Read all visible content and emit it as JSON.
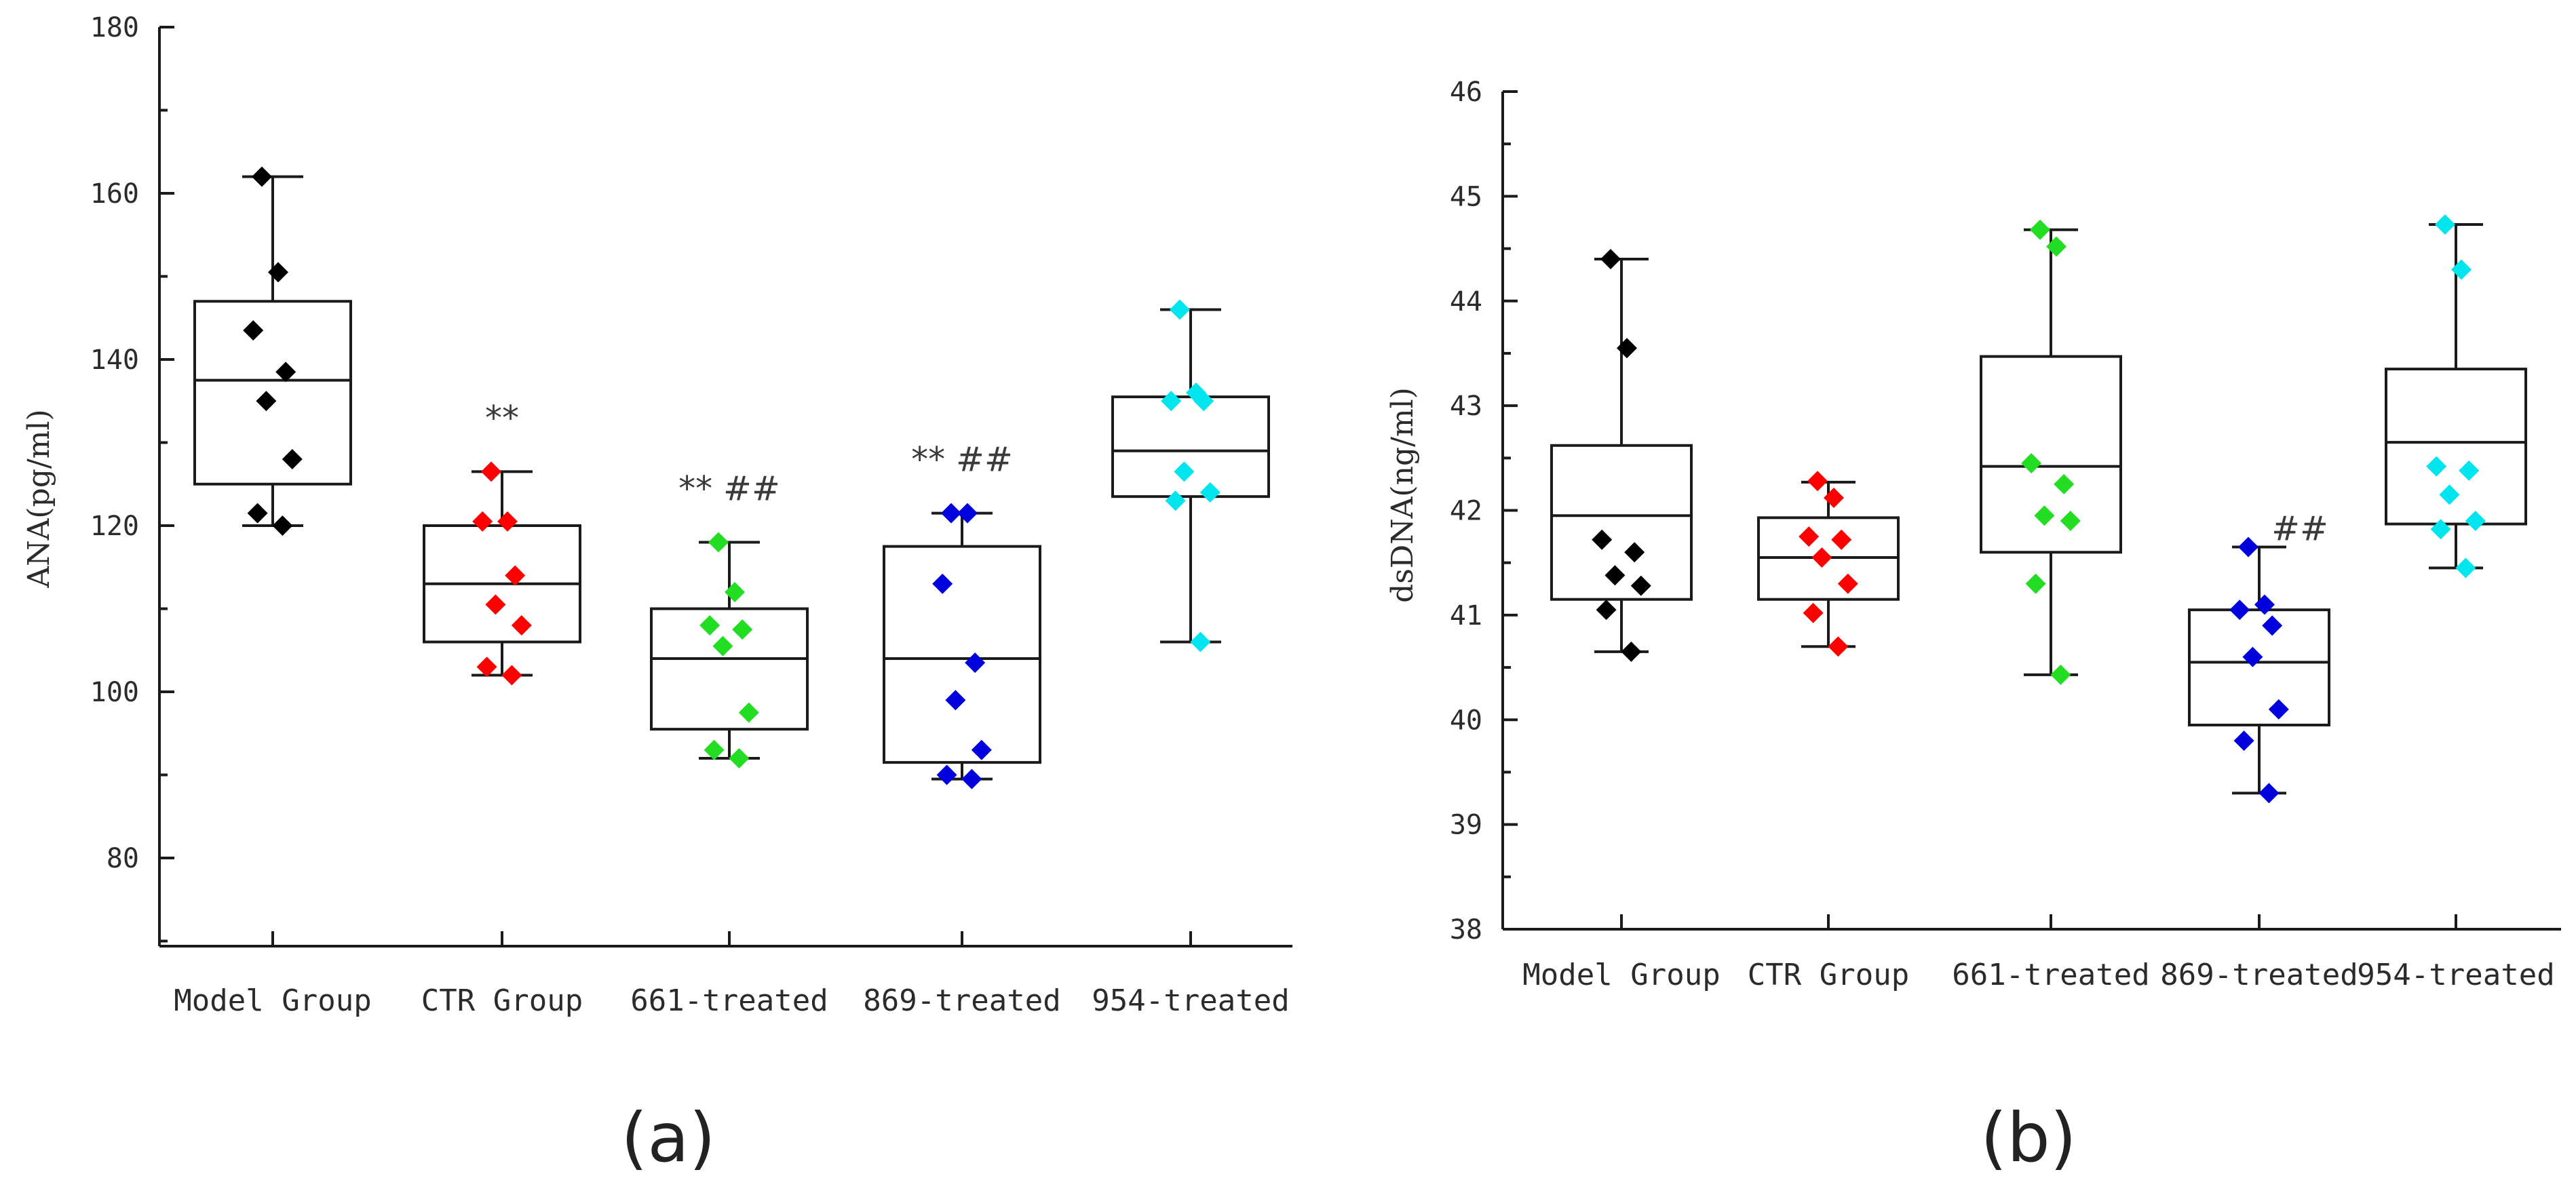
{
  "chart_data": [
    {
      "type": "box",
      "panel_label": "(a)",
      "ylabel": "ANA(pg/ml)",
      "ylim": [
        70,
        180
      ],
      "yticks": [
        80,
        100,
        120,
        140,
        160,
        180
      ],
      "categories": [
        "Model Group",
        "CTR Group",
        "661-treated",
        "869-treated",
        "954-treated"
      ],
      "colors": [
        "#000000",
        "#ff0000",
        "#22dd22",
        "#0000dd",
        "#00e5ee"
      ],
      "boxes": [
        {
          "whisker_low": 120,
          "q1": 125,
          "median": 137.5,
          "q3": 147,
          "whisker_high": 162
        },
        {
          "whisker_low": 102,
          "q1": 106,
          "median": 113,
          "q3": 120,
          "whisker_high": 126.5
        },
        {
          "whisker_low": 92,
          "q1": 95.5,
          "median": 104,
          "q3": 110,
          "whisker_high": 118
        },
        {
          "whisker_low": 89.5,
          "q1": 91.5,
          "median": 104,
          "q3": 117.5,
          "whisker_high": 121.5
        },
        {
          "whisker_low": 106,
          "q1": 123.5,
          "median": 129,
          "q3": 135.5,
          "whisker_high": 146
        }
      ],
      "points": [
        [
          162,
          150.5,
          143.5,
          138.5,
          135,
          128,
          121.5,
          120
        ],
        [
          126.5,
          120.5,
          120.5,
          114,
          110.5,
          108,
          103,
          102
        ],
        [
          118,
          112,
          108,
          107.5,
          105.5,
          97.5,
          93,
          92
        ],
        [
          121.5,
          121.5,
          113,
          103.5,
          99,
          93,
          90,
          89.5
        ],
        [
          146,
          136,
          135,
          135,
          126.5,
          124,
          123,
          106
        ]
      ],
      "annotations": [
        "",
        "**",
        "** ##",
        "** ##",
        ""
      ]
    },
    {
      "type": "box",
      "panel_label": "(b)",
      "ylabel": "dsDNA(ng/ml)",
      "ylim": [
        38,
        46
      ],
      "yticks": [
        38,
        39,
        40,
        41,
        42,
        43,
        44,
        45,
        46
      ],
      "categories": [
        "Model Group",
        "CTR Group",
        "661-treated",
        "869-treated",
        "954-treated"
      ],
      "colors": [
        "#000000",
        "#ff0000",
        "#22dd22",
        "#0000dd",
        "#00e5ee"
      ],
      "boxes": [
        {
          "whisker_low": 40.65,
          "q1": 41.15,
          "median": 41.95,
          "q3": 42.62,
          "whisker_high": 44.4
        },
        {
          "whisker_low": 40.7,
          "q1": 41.15,
          "median": 41.55,
          "q3": 41.93,
          "whisker_high": 42.27
        },
        {
          "whisker_low": 40.43,
          "q1": 41.6,
          "median": 42.42,
          "q3": 43.47,
          "whisker_high": 44.68
        },
        {
          "whisker_low": 39.3,
          "q1": 39.95,
          "median": 40.55,
          "q3": 41.05,
          "whisker_high": 41.65
        },
        {
          "whisker_low": 41.45,
          "q1": 41.87,
          "median": 42.65,
          "q3": 43.35,
          "whisker_high": 44.73
        }
      ],
      "points": [
        [
          44.4,
          43.55,
          41.72,
          41.6,
          41.38,
          41.28,
          41.05,
          40.65
        ],
        [
          42.28,
          42.12,
          41.75,
          41.72,
          41.55,
          41.3,
          41.02,
          40.7
        ],
        [
          44.68,
          44.52,
          42.45,
          42.25,
          41.95,
          41.9,
          41.3,
          40.43
        ],
        [
          41.65,
          41.1,
          41.05,
          40.9,
          40.6,
          40.1,
          39.8,
          39.3
        ],
        [
          44.73,
          44.3,
          42.42,
          42.38,
          42.15,
          41.9,
          41.82,
          41.45
        ]
      ],
      "annotations": [
        "",
        "",
        "",
        "##",
        ""
      ]
    }
  ]
}
